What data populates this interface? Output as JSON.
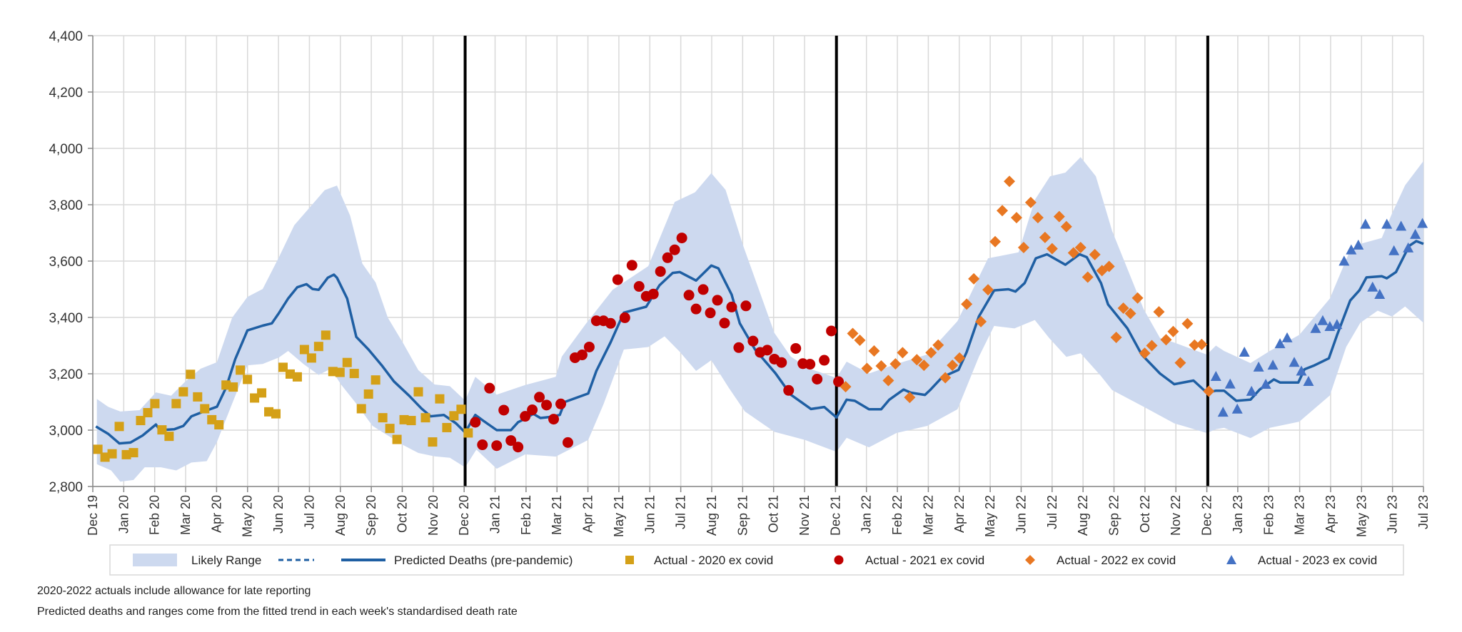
{
  "chart_data": {
    "type": "line",
    "title": "",
    "xlabel": "",
    "ylabel": "",
    "ylim": [
      2800,
      4400
    ],
    "yticks": [
      2800,
      3000,
      3200,
      3400,
      3600,
      3800,
      4000,
      4200,
      4400
    ],
    "ytick_labels": [
      "2,800",
      "3,000",
      "3,200",
      "3,400",
      "3,600",
      "3,800",
      "4,000",
      "4,200",
      "4,400"
    ],
    "xlim": [
      "2019-12-01",
      "2023-07-01"
    ],
    "xtick_labels": [
      "Dec 19",
      "Jan 20",
      "Feb 20",
      "Mar 20",
      "Apr 20",
      "May 20",
      "Jun 20",
      "Jul 20",
      "Aug 20",
      "Sep 20",
      "Oct 20",
      "Nov 20",
      "Dec 20",
      "Jan 21",
      "Feb 21",
      "Mar 21",
      "Apr 21",
      "May 21",
      "Jun 21",
      "Jul 21",
      "Aug 21",
      "Sep 21",
      "Oct 21",
      "Nov 21",
      "Dec 21",
      "Jan 22",
      "Feb 22",
      "Mar 22",
      "Apr 22",
      "May 22",
      "Jun 22",
      "Jul 22",
      "Aug 22",
      "Sep 22",
      "Oct 22",
      "Nov 22",
      "Dec 22",
      "Jan 23",
      "Feb 23",
      "Mar 23",
      "Apr 23",
      "May 23",
      "Jun 23",
      "Jul 23"
    ],
    "grid": true,
    "year_dividers": [
      "2020-12-01",
      "2021-12-01",
      "2022-12-01"
    ],
    "legend_position": "bottom",
    "legend": [
      "Likely Range",
      "",
      "Predicted Deaths (pre-pandemic)",
      "Actual - 2020 ex covid",
      "Actual - 2021 ex covid",
      "Actual - 2022 ex covid",
      "Actual - 2023 ex covid"
    ],
    "colors": {
      "range": "#cdd9ef",
      "predicted": "#1f5fa3",
      "divider": "#000000",
      "a2020": "#d4a017",
      "a2021": "#c00000",
      "a2022": "#e87722",
      "a2023": "#4472c4"
    },
    "predicted": [
      [
        "2019-12-04",
        3013
      ],
      [
        "2019-12-16",
        2987
      ],
      [
        "2019-12-27",
        2953
      ],
      [
        "2020-01-07",
        2956
      ],
      [
        "2020-01-19",
        2981
      ],
      [
        "2020-02-01",
        3020
      ],
      [
        "2020-02-05",
        3000
      ],
      [
        "2020-02-19",
        3003
      ],
      [
        "2020-02-28",
        3015
      ],
      [
        "2020-03-07",
        3049
      ],
      [
        "2020-03-19",
        3066
      ],
      [
        "2020-04-01",
        3083
      ],
      [
        "2020-04-10",
        3151
      ],
      [
        "2020-04-19",
        3252
      ],
      [
        "2020-05-01",
        3354
      ],
      [
        "2020-05-16",
        3371
      ],
      [
        "2020-05-25",
        3379
      ],
      [
        "2020-06-01",
        3416
      ],
      [
        "2020-06-10",
        3467
      ],
      [
        "2020-06-19",
        3507
      ],
      [
        "2020-06-28",
        3518
      ],
      [
        "2020-07-04",
        3501
      ],
      [
        "2020-07-10",
        3498
      ],
      [
        "2020-07-19",
        3541
      ],
      [
        "2020-07-25",
        3552
      ],
      [
        "2020-07-28",
        3541
      ],
      [
        "2020-08-07",
        3467
      ],
      [
        "2020-08-16",
        3331
      ],
      [
        "2020-08-28",
        3286
      ],
      [
        "2020-09-10",
        3230
      ],
      [
        "2020-09-22",
        3173
      ],
      [
        "2020-10-07",
        3122
      ],
      [
        "2020-10-19",
        3077
      ],
      [
        "2020-10-28",
        3049
      ],
      [
        "2020-11-10",
        3054
      ],
      [
        "2020-11-22",
        3024
      ],
      [
        "2020-12-01",
        2992
      ],
      [
        "2020-12-11",
        3054
      ],
      [
        "2020-12-19",
        3033
      ],
      [
        "2021-01-01",
        3000
      ],
      [
        "2021-01-15",
        3000
      ],
      [
        "2021-01-22",
        3028
      ],
      [
        "2021-01-29",
        3041
      ],
      [
        "2021-02-06",
        3058
      ],
      [
        "2021-02-13",
        3043
      ],
      [
        "2021-02-21",
        3046
      ],
      [
        "2021-03-04",
        3054
      ],
      [
        "2021-03-09",
        3100
      ],
      [
        "2021-04-01",
        3130
      ],
      [
        "2021-04-09",
        3210
      ],
      [
        "2021-04-23",
        3312
      ],
      [
        "2021-05-06",
        3417
      ],
      [
        "2021-05-28",
        3438
      ],
      [
        "2021-06-10",
        3514
      ],
      [
        "2021-06-23",
        3558
      ],
      [
        "2021-06-30",
        3561
      ],
      [
        "2021-07-16",
        3531
      ],
      [
        "2021-07-31",
        3584
      ],
      [
        "2021-08-07",
        3574
      ],
      [
        "2021-08-20",
        3481
      ],
      [
        "2021-08-28",
        3379
      ],
      [
        "2021-09-12",
        3286
      ],
      [
        "2021-10-02",
        3202
      ],
      [
        "2021-10-17",
        3126
      ],
      [
        "2021-11-06",
        3075
      ],
      [
        "2021-11-19",
        3082
      ],
      [
        "2021-12-01",
        3045
      ],
      [
        "2021-12-11",
        3108
      ],
      [
        "2021-12-19",
        3104
      ],
      [
        "2022-01-02",
        3074
      ],
      [
        "2022-01-14",
        3074
      ],
      [
        "2022-01-22",
        3108
      ],
      [
        "2022-02-05",
        3144
      ],
      [
        "2022-02-12",
        3133
      ],
      [
        "2022-02-26",
        3125
      ],
      [
        "2022-03-03",
        3142
      ],
      [
        "2022-03-15",
        3188
      ],
      [
        "2022-03-31",
        3214
      ],
      [
        "2022-04-08",
        3277
      ],
      [
        "2022-04-20",
        3403
      ],
      [
        "2022-05-05",
        3496
      ],
      [
        "2022-05-19",
        3500
      ],
      [
        "2022-05-26",
        3492
      ],
      [
        "2022-06-04",
        3522
      ],
      [
        "2022-06-15",
        3610
      ],
      [
        "2022-06-26",
        3624
      ],
      [
        "2022-07-14",
        3587
      ],
      [
        "2022-07-28",
        3624
      ],
      [
        "2022-08-04",
        3614
      ],
      [
        "2022-08-18",
        3522
      ],
      [
        "2022-08-25",
        3446
      ],
      [
        "2022-09-13",
        3361
      ],
      [
        "2022-09-27",
        3268
      ],
      [
        "2022-10-15",
        3201
      ],
      [
        "2022-10-29",
        3163
      ],
      [
        "2022-11-17",
        3176
      ],
      [
        "2022-11-30",
        3133
      ],
      [
        "2022-12-09",
        3140
      ],
      [
        "2022-12-17",
        3140
      ],
      [
        "2022-12-29",
        3104
      ],
      [
        "2023-01-12",
        3108
      ],
      [
        "2023-01-21",
        3144
      ],
      [
        "2023-02-04",
        3180
      ],
      [
        "2023-02-10",
        3169
      ],
      [
        "2023-02-28",
        3169
      ],
      [
        "2023-03-06",
        3216
      ],
      [
        "2023-03-16",
        3230
      ],
      [
        "2023-03-30",
        3255
      ],
      [
        "2023-04-07",
        3337
      ],
      [
        "2023-04-20",
        3460
      ],
      [
        "2023-04-29",
        3496
      ],
      [
        "2023-05-06",
        3542
      ],
      [
        "2023-05-21",
        3546
      ],
      [
        "2023-05-26",
        3539
      ],
      [
        "2023-06-04",
        3561
      ],
      [
        "2023-06-17",
        3654
      ],
      [
        "2023-06-24",
        3671
      ],
      [
        "2023-07-01",
        3661
      ]
    ],
    "range_upper": [
      [
        "2019-12-05",
        3111
      ],
      [
        "2019-12-16",
        3083
      ],
      [
        "2019-12-28",
        3066
      ],
      [
        "2020-01-16",
        3071
      ],
      [
        "2020-02-01",
        3134
      ],
      [
        "2020-02-16",
        3122
      ],
      [
        "2020-03-01",
        3173
      ],
      [
        "2020-03-16",
        3218
      ],
      [
        "2020-04-01",
        3241
      ],
      [
        "2020-04-16",
        3399
      ],
      [
        "2020-05-01",
        3473
      ],
      [
        "2020-05-16",
        3501
      ],
      [
        "2020-06-01",
        3614
      ],
      [
        "2020-06-16",
        3727
      ],
      [
        "2020-07-01",
        3789
      ],
      [
        "2020-07-16",
        3852
      ],
      [
        "2020-07-28",
        3868
      ],
      [
        "2020-08-10",
        3761
      ],
      [
        "2020-08-22",
        3591
      ],
      [
        "2020-09-04",
        3524
      ],
      [
        "2020-09-16",
        3399
      ],
      [
        "2020-10-01",
        3309
      ],
      [
        "2020-10-16",
        3213
      ],
      [
        "2020-11-01",
        3162
      ],
      [
        "2020-11-16",
        3156
      ],
      [
        "2020-12-01",
        3105
      ],
      [
        "2020-12-11",
        3189
      ],
      [
        "2021-01-01",
        3126
      ],
      [
        "2021-01-29",
        3160
      ],
      [
        "2021-02-28",
        3189
      ],
      [
        "2021-03-06",
        3261
      ],
      [
        "2021-03-30",
        3379
      ],
      [
        "2021-04-25",
        3498
      ],
      [
        "2021-05-30",
        3582
      ],
      [
        "2021-06-25",
        3810
      ],
      [
        "2021-07-15",
        3844
      ],
      [
        "2021-07-31",
        3912
      ],
      [
        "2021-08-14",
        3853
      ],
      [
        "2021-08-31",
        3658
      ],
      [
        "2021-10-01",
        3345
      ],
      [
        "2021-10-17",
        3261
      ],
      [
        "2021-11-04",
        3219
      ],
      [
        "2021-12-01",
        3185
      ],
      [
        "2021-12-11",
        3243
      ],
      [
        "2022-01-02",
        3201
      ],
      [
        "2022-01-29",
        3235
      ],
      [
        "2022-02-28",
        3268
      ],
      [
        "2022-03-30",
        3387
      ],
      [
        "2022-04-29",
        3610
      ],
      [
        "2022-05-29",
        3631
      ],
      [
        "2022-06-14",
        3817
      ],
      [
        "2022-06-29",
        3901
      ],
      [
        "2022-07-14",
        3914
      ],
      [
        "2022-07-29",
        3969
      ],
      [
        "2022-08-13",
        3901
      ],
      [
        "2022-08-29",
        3707
      ],
      [
        "2022-09-29",
        3429
      ],
      [
        "2022-10-15",
        3327
      ],
      [
        "2022-10-29",
        3311
      ],
      [
        "2022-11-30",
        3268
      ],
      [
        "2022-12-09",
        3300
      ],
      [
        "2022-12-17",
        3281
      ],
      [
        "2023-01-12",
        3238
      ],
      [
        "2023-01-31",
        3281
      ],
      [
        "2023-03-01",
        3338
      ],
      [
        "2023-03-31",
        3467
      ],
      [
        "2023-04-20",
        3639
      ],
      [
        "2023-04-30",
        3661
      ],
      [
        "2023-05-21",
        3682
      ],
      [
        "2023-05-31",
        3768
      ],
      [
        "2023-06-13",
        3869
      ],
      [
        "2023-07-01",
        3955
      ]
    ],
    "range_lower": [
      [
        "2019-12-05",
        2879
      ],
      [
        "2019-12-19",
        2857
      ],
      [
        "2019-12-28",
        2817
      ],
      [
        "2020-01-10",
        2823
      ],
      [
        "2020-01-21",
        2868
      ],
      [
        "2020-02-06",
        2868
      ],
      [
        "2020-02-21",
        2857
      ],
      [
        "2020-03-07",
        2885
      ],
      [
        "2020-03-22",
        2890
      ],
      [
        "2020-04-01",
        2958
      ],
      [
        "2020-04-16",
        3094
      ],
      [
        "2020-05-01",
        3230
      ],
      [
        "2020-05-16",
        3235
      ],
      [
        "2020-06-01",
        3258
      ],
      [
        "2020-06-10",
        3281
      ],
      [
        "2020-06-25",
        3235
      ],
      [
        "2020-07-10",
        3196
      ],
      [
        "2020-07-22",
        3218
      ],
      [
        "2020-08-01",
        3162
      ],
      [
        "2020-08-16",
        3094
      ],
      [
        "2020-09-01",
        3015
      ],
      [
        "2020-09-16",
        2981
      ],
      [
        "2020-10-01",
        2947
      ],
      [
        "2020-10-16",
        2919
      ],
      [
        "2020-11-01",
        2907
      ],
      [
        "2020-11-16",
        2902
      ],
      [
        "2020-12-01",
        2868
      ],
      [
        "2020-12-12",
        2931
      ],
      [
        "2021-01-01",
        2863
      ],
      [
        "2021-01-29",
        2914
      ],
      [
        "2021-02-28",
        2906
      ],
      [
        "2021-04-01",
        2965
      ],
      [
        "2021-04-16",
        3092
      ],
      [
        "2021-05-06",
        3286
      ],
      [
        "2021-05-30",
        3295
      ],
      [
        "2021-06-15",
        3333
      ],
      [
        "2021-06-30",
        3278
      ],
      [
        "2021-07-16",
        3210
      ],
      [
        "2021-07-31",
        3248
      ],
      [
        "2021-08-17",
        3151
      ],
      [
        "2021-09-02",
        3066
      ],
      [
        "2021-10-01",
        2994
      ],
      [
        "2021-10-31",
        2965
      ],
      [
        "2021-12-01",
        2923
      ],
      [
        "2021-12-11",
        2973
      ],
      [
        "2022-01-02",
        2939
      ],
      [
        "2022-01-29",
        2990
      ],
      [
        "2022-02-28",
        3015
      ],
      [
        "2022-03-30",
        3074
      ],
      [
        "2022-04-20",
        3260
      ],
      [
        "2022-05-05",
        3370
      ],
      [
        "2022-05-25",
        3361
      ],
      [
        "2022-06-14",
        3391
      ],
      [
        "2022-06-28",
        3327
      ],
      [
        "2022-07-15",
        3260
      ],
      [
        "2022-07-29",
        3273
      ],
      [
        "2022-08-18",
        3192
      ],
      [
        "2022-08-29",
        3142
      ],
      [
        "2022-09-29",
        3083
      ],
      [
        "2022-10-29",
        3024
      ],
      [
        "2022-11-30",
        2990
      ],
      [
        "2022-12-09",
        3003
      ],
      [
        "2022-12-17",
        3008
      ],
      [
        "2023-01-12",
        2972
      ],
      [
        "2023-01-31",
        3008
      ],
      [
        "2023-03-01",
        3030
      ],
      [
        "2023-03-31",
        3123
      ],
      [
        "2023-04-16",
        3295
      ],
      [
        "2023-04-30",
        3381
      ],
      [
        "2023-05-17",
        3424
      ],
      [
        "2023-05-31",
        3403
      ],
      [
        "2023-06-13",
        3439
      ],
      [
        "2023-07-01",
        3381
      ]
    ],
    "actuals": [
      {
        "name": "Actual - 2020 ex covid",
        "marker": "square",
        "color_key": "a2020",
        "start": "2019-12-06",
        "interval_days": 7,
        "values": [
          2932,
          2904,
          2916,
          3013,
          2913,
          2920,
          3034,
          3062,
          3094,
          3001,
          2978,
          3094,
          3136,
          3198,
          3118,
          3076,
          3037,
          3019,
          3160,
          3153,
          3213,
          3180,
          3114,
          3132,
          3065,
          3058,
          3223,
          3199,
          3189,
          3286,
          3256,
          3297,
          3337,
          3208,
          3205,
          3240,
          3201,
          3076,
          3128,
          3178,
          3044,
          3006,
          2967,
          3037,
          3034,
          3136,
          3044,
          2958,
          3111,
          3009,
          3051,
          3074,
          2990
        ]
      },
      {
        "name": "Actual - 2021 ex covid",
        "marker": "circle",
        "color_key": "a2021",
        "start": "2020-12-11",
        "interval_days": 7,
        "values": [
          3028,
          2948,
          3149,
          2945,
          3071,
          2963,
          2940,
          3049,
          3072,
          3117,
          3089,
          3039,
          3093,
          2956,
          3257,
          3267,
          3295,
          3388,
          3388,
          3379,
          3534,
          3399,
          3585,
          3510,
          3475,
          3483,
          3563,
          3612,
          3640,
          3682,
          3479,
          3430,
          3499,
          3416,
          3461,
          3380,
          3437,
          3293,
          3441,
          3316,
          3276,
          3284,
          3252,
          3240,
          3141,
          3290,
          3236,
          3234,
          3181,
          3248,
          3352,
          3172
        ]
      },
      {
        "name": "Actual - 2022 ex covid",
        "marker": "diamond",
        "color_key": "a2022",
        "start": "2021-12-10",
        "interval_days": 7,
        "values": [
          3154,
          3343,
          3319,
          3219,
          3281,
          3228,
          3176,
          3235,
          3275,
          3116,
          3250,
          3230,
          3275,
          3302,
          3186,
          3230,
          3256,
          3447,
          3537,
          3385,
          3498,
          3669,
          3779,
          3883,
          3754,
          3648,
          3808,
          3754,
          3684,
          3644,
          3758,
          3722,
          3629,
          3648,
          3543,
          3623,
          3566,
          3581,
          3329,
          3433,
          3414,
          3469,
          3273,
          3300,
          3420,
          3321,
          3350,
          3239,
          3378,
          3302,
          3304,
          3138
        ]
      },
      {
        "name": "Actual - 2023 ex covid",
        "marker": "triangle",
        "color_key": "a2023",
        "start": "2022-12-09",
        "interval_days": 7,
        "values": [
          3190,
          3063,
          3163,
          3074,
          3276,
          3137,
          3223,
          3162,
          3230,
          3306,
          3327,
          3240,
          3209,
          3172,
          3360,
          3388,
          3367,
          3374,
          3599,
          3639,
          3656,
          3730,
          3507,
          3481,
          3730,
          3636,
          3723,
          3646,
          3694,
          3733
        ]
      }
    ]
  },
  "footnotes": [
    "2020-2022  actuals include allowance for late reporting",
    "Predicted deaths and ranges come from the fitted trend in each week's standardised death rate"
  ]
}
